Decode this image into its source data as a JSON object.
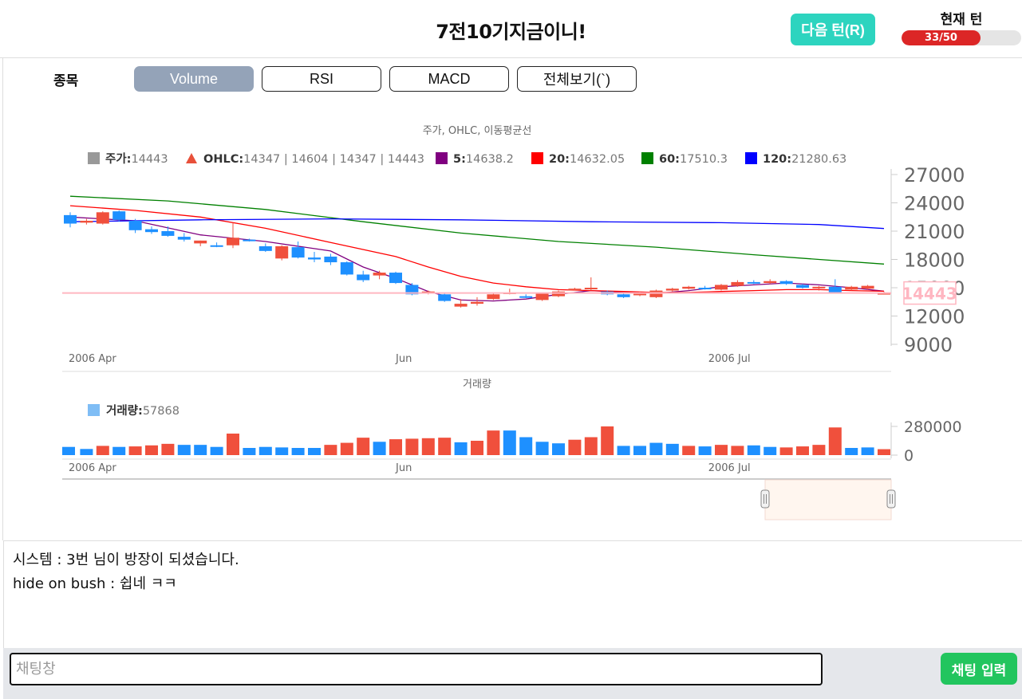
{
  "header": {
    "title": "7전10기지금이니!",
    "next_turn_label": "다음 턴(R)",
    "turn_label": "현재 턴",
    "turn_progress_text": "33/50",
    "turn_current": 33,
    "turn_total": 50
  },
  "toolbar": {
    "stock_label": "종목",
    "tabs": [
      {
        "label": "Volume",
        "active": true
      },
      {
        "label": "RSI",
        "active": false
      },
      {
        "label": "MACD",
        "active": false
      },
      {
        "label": "전체보기(`)",
        "active": false
      }
    ]
  },
  "chart_data": [
    {
      "type": "candlestick",
      "title": "주가, OHLC, 이동평균선",
      "legend": [
        {
          "name": "주가",
          "value": "14443",
          "color": "#999999",
          "marker": "square"
        },
        {
          "name": "OHLC",
          "value": "14347 | 14604 | 14347 | 14443",
          "color": "#e8503a",
          "marker": "triangle"
        },
        {
          "name": "5",
          "value": "14638.2",
          "color": "#800080",
          "marker": "square"
        },
        {
          "name": "20",
          "value": "14632.05",
          "color": "#ff0000",
          "marker": "square"
        },
        {
          "name": "60",
          "value": "17510.3",
          "color": "#008000",
          "marker": "square"
        },
        {
          "name": "120",
          "value": "21280.63",
          "color": "#0000ff",
          "marker": "square"
        }
      ],
      "y_ticks": [
        "27000",
        "24000",
        "21000",
        "18000",
        "15000",
        "12000",
        "9000"
      ],
      "ylim": [
        9000,
        27000
      ],
      "x_ticks": [
        {
          "label": "2006 Apr",
          "index": 0
        },
        {
          "label": "Jun",
          "index": 20.5
        },
        {
          "label": "2006 Jul",
          "index": 40.5
        }
      ],
      "current_price_label": "14443",
      "current_price": 14443,
      "candles": [
        {
          "o": 22700,
          "h": 23000,
          "l": 21400,
          "c": 21800
        },
        {
          "o": 21900,
          "h": 22300,
          "l": 21700,
          "c": 22100
        },
        {
          "o": 21800,
          "h": 23100,
          "l": 21700,
          "c": 23000
        },
        {
          "o": 23100,
          "h": 23200,
          "l": 22000,
          "c": 22200
        },
        {
          "o": 22100,
          "h": 22300,
          "l": 20800,
          "c": 21100
        },
        {
          "o": 21200,
          "h": 21500,
          "l": 20700,
          "c": 20900
        },
        {
          "o": 21000,
          "h": 21500,
          "l": 20400,
          "c": 20500
        },
        {
          "o": 20400,
          "h": 20800,
          "l": 19900,
          "c": 20100
        },
        {
          "o": 19700,
          "h": 20000,
          "l": 19400,
          "c": 20000
        },
        {
          "o": 19500,
          "h": 19800,
          "l": 19300,
          "c": 19400
        },
        {
          "o": 19500,
          "h": 21900,
          "l": 19200,
          "c": 20300
        },
        {
          "o": 20100,
          "h": 20200,
          "l": 19900,
          "c": 20000
        },
        {
          "o": 19400,
          "h": 19700,
          "l": 18800,
          "c": 18900
        },
        {
          "o": 18100,
          "h": 19500,
          "l": 17900,
          "c": 19400
        },
        {
          "o": 19300,
          "h": 19900,
          "l": 18100,
          "c": 18200
        },
        {
          "o": 18200,
          "h": 18800,
          "l": 17700,
          "c": 18000
        },
        {
          "o": 18300,
          "h": 18600,
          "l": 17400,
          "c": 17700
        },
        {
          "o": 17700,
          "h": 17800,
          "l": 16300,
          "c": 16400
        },
        {
          "o": 16400,
          "h": 16800,
          "l": 15600,
          "c": 15800
        },
        {
          "o": 16300,
          "h": 16800,
          "l": 15900,
          "c": 16600
        },
        {
          "o": 16600,
          "h": 16700,
          "l": 15400,
          "c": 15500
        },
        {
          "o": 15300,
          "h": 15500,
          "l": 14200,
          "c": 14300
        },
        {
          "o": 14500,
          "h": 14700,
          "l": 14300,
          "c": 14600
        },
        {
          "o": 14300,
          "h": 14500,
          "l": 13500,
          "c": 13600
        },
        {
          "o": 13000,
          "h": 13800,
          "l": 12900,
          "c": 13300
        },
        {
          "o": 13300,
          "h": 14000,
          "l": 13100,
          "c": 13500
        },
        {
          "o": 13800,
          "h": 14500,
          "l": 13700,
          "c": 14300
        },
        {
          "o": 14400,
          "h": 14900,
          "l": 14300,
          "c": 14500
        },
        {
          "o": 14100,
          "h": 14300,
          "l": 13900,
          "c": 14000
        },
        {
          "o": 13700,
          "h": 14300,
          "l": 13600,
          "c": 14400
        },
        {
          "o": 14100,
          "h": 14700,
          "l": 14000,
          "c": 14600
        },
        {
          "o": 14800,
          "h": 15000,
          "l": 14700,
          "c": 14900
        },
        {
          "o": 14900,
          "h": 16100,
          "l": 14700,
          "c": 15000
        },
        {
          "o": 14600,
          "h": 14700,
          "l": 14200,
          "c": 14300
        },
        {
          "o": 14300,
          "h": 14500,
          "l": 13900,
          "c": 14000
        },
        {
          "o": 14200,
          "h": 14600,
          "l": 14100,
          "c": 14400
        },
        {
          "o": 14000,
          "h": 14800,
          "l": 13900,
          "c": 14700
        },
        {
          "o": 14700,
          "h": 15000,
          "l": 14600,
          "c": 14900
        },
        {
          "o": 14900,
          "h": 15200,
          "l": 14800,
          "c": 15100
        },
        {
          "o": 15000,
          "h": 15200,
          "l": 14800,
          "c": 14900
        },
        {
          "o": 14800,
          "h": 15400,
          "l": 14700,
          "c": 15300
        },
        {
          "o": 15200,
          "h": 15800,
          "l": 15100,
          "c": 15600
        },
        {
          "o": 15600,
          "h": 15800,
          "l": 15400,
          "c": 15500
        },
        {
          "o": 15500,
          "h": 15900,
          "l": 15400,
          "c": 15700
        },
        {
          "o": 15700,
          "h": 15800,
          "l": 15300,
          "c": 15400
        },
        {
          "o": 15300,
          "h": 15400,
          "l": 14900,
          "c": 15000
        },
        {
          "o": 15000,
          "h": 15200,
          "l": 14700,
          "c": 15100
        },
        {
          "o": 15100,
          "h": 15900,
          "l": 14400,
          "c": 14500
        },
        {
          "o": 14800,
          "h": 15200,
          "l": 14700,
          "c": 15100
        },
        {
          "o": 14900,
          "h": 15300,
          "l": 14800,
          "c": 15200
        },
        {
          "o": 14347,
          "h": 14604,
          "l": 14347,
          "c": 14443
        }
      ],
      "moving_averages": [
        {
          "name": "5",
          "color": "#800080",
          "points": [
            [
              0,
              22500
            ],
            [
              4,
              22100
            ],
            [
              8,
              20600
            ],
            [
              12,
              19900
            ],
            [
              16,
              18900
            ],
            [
              18,
              17200
            ],
            [
              20,
              16000
            ],
            [
              22,
              14600
            ],
            [
              24,
              13700
            ],
            [
              26,
              13600
            ],
            [
              28,
              13800
            ],
            [
              30,
              14300
            ],
            [
              32,
              14700
            ],
            [
              34,
              14500
            ],
            [
              36,
              14400
            ],
            [
              38,
              14700
            ],
            [
              40,
              15100
            ],
            [
              42,
              15300
            ],
            [
              44,
              15500
            ],
            [
              46,
              15300
            ],
            [
              48,
              15000
            ],
            [
              50,
              14638
            ]
          ]
        },
        {
          "name": "20",
          "color": "#ff0000",
          "points": [
            [
              0,
              23700
            ],
            [
              4,
              23200
            ],
            [
              8,
              22500
            ],
            [
              12,
              21300
            ],
            [
              16,
              19800
            ],
            [
              20,
              18300
            ],
            [
              22,
              17200
            ],
            [
              24,
              16200
            ],
            [
              26,
              15500
            ],
            [
              28,
              15100
            ],
            [
              30,
              14800
            ],
            [
              32,
              14700
            ],
            [
              34,
              14600
            ],
            [
              36,
              14500
            ],
            [
              38,
              14500
            ],
            [
              40,
              14600
            ],
            [
              42,
              14700
            ],
            [
              44,
              14800
            ],
            [
              46,
              14800
            ],
            [
              48,
              14700
            ],
            [
              50,
              14632
            ]
          ]
        },
        {
          "name": "60",
          "color": "#008000",
          "points": [
            [
              0,
              24700
            ],
            [
              6,
              24200
            ],
            [
              12,
              23300
            ],
            [
              18,
              22000
            ],
            [
              24,
              20800
            ],
            [
              30,
              19900
            ],
            [
              36,
              19300
            ],
            [
              42,
              18500
            ],
            [
              46,
              18000
            ],
            [
              50,
              17510
            ]
          ]
        },
        {
          "name": "120",
          "color": "#0000ff",
          "points": [
            [
              0,
              22000
            ],
            [
              8,
              22200
            ],
            [
              16,
              22300
            ],
            [
              24,
              22200
            ],
            [
              32,
              22000
            ],
            [
              40,
              21900
            ],
            [
              46,
              21700
            ],
            [
              50,
              21280
            ]
          ]
        }
      ]
    },
    {
      "type": "bar",
      "title": "거래량",
      "legend": [
        {
          "name": "거래량",
          "value": "57868",
          "color": "#7fbdf5",
          "marker": "square"
        }
      ],
      "y_ticks": [
        "280000",
        "0"
      ],
      "ylim": [
        0,
        280000
      ],
      "x_ticks": [
        {
          "label": "2006 Apr",
          "index": 0
        },
        {
          "label": "Jun",
          "index": 20.5
        },
        {
          "label": "2006 Jul",
          "index": 40.5
        }
      ],
      "values": [
        80000,
        60000,
        90000,
        80000,
        85000,
        95000,
        110000,
        100000,
        100000,
        80000,
        210000,
        70000,
        80000,
        75000,
        70000,
        70000,
        100000,
        120000,
        170000,
        130000,
        155000,
        160000,
        165000,
        170000,
        125000,
        140000,
        240000,
        240000,
        175000,
        130000,
        115000,
        150000,
        175000,
        280000,
        90000,
        90000,
        120000,
        110000,
        90000,
        85000,
        100000,
        90000,
        95000,
        80000,
        75000,
        85000,
        100000,
        270000,
        70000,
        75000,
        57868
      ],
      "up": [
        false,
        false,
        true,
        false,
        true,
        true,
        true,
        false,
        false,
        false,
        true,
        false,
        false,
        false,
        false,
        false,
        true,
        true,
        true,
        false,
        true,
        true,
        true,
        true,
        false,
        true,
        true,
        false,
        false,
        false,
        false,
        true,
        true,
        true,
        false,
        false,
        false,
        false,
        true,
        false,
        true,
        true,
        false,
        false,
        true,
        true,
        true,
        true,
        false,
        false,
        true
      ]
    }
  ],
  "chat": {
    "messages": [
      "시스템 : 3번 님이 방장이 되셨습니다.",
      "hide on bush : 쉽네 ㅋㅋ"
    ],
    "input_placeholder": "채팅창",
    "input_value": "",
    "send_label": "채팅 입력"
  }
}
